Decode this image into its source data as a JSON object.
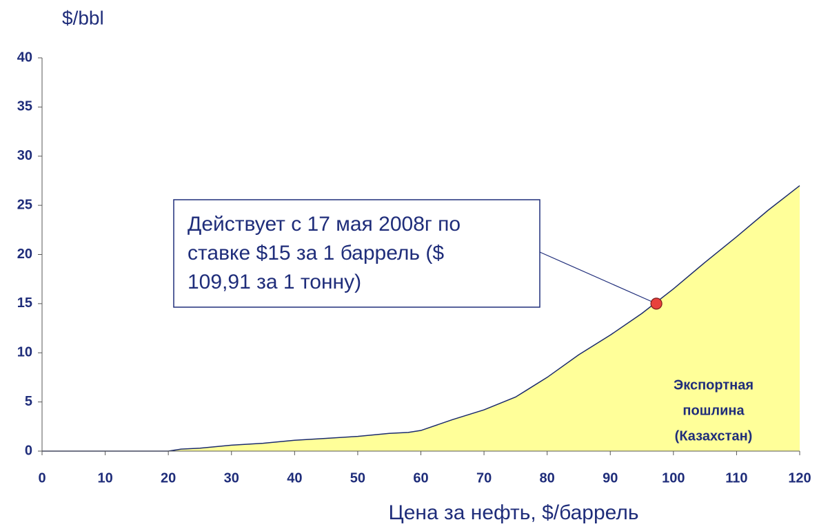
{
  "chart_data": {
    "type": "area",
    "y_label": "$/bbl",
    "x_label": "Цена за нефть, $/баррель",
    "x": [
      0,
      20,
      22,
      25,
      30,
      35,
      40,
      45,
      50,
      55,
      58,
      60,
      65,
      70,
      75,
      80,
      85,
      90,
      95,
      100,
      105,
      110,
      115,
      120
    ],
    "series": [
      {
        "color": "#ffff99",
        "line_color": "#1a2a6c",
        "values": [
          0,
          0,
          0.2,
          0.3,
          0.6,
          0.8,
          1.1,
          1.3,
          1.5,
          1.8,
          1.9,
          2.1,
          3.2,
          4.2,
          5.5,
          7.5,
          9.8,
          11.8,
          14,
          16.5,
          19.2,
          21.8,
          24.5,
          27
        ]
      }
    ],
    "area_label": [
      "Экспортная",
      "пошлина",
      "(Казахстан)"
    ],
    "marker": {
      "x": 97.3,
      "y": 15,
      "color": "#e8413c"
    },
    "callout": [
      "Действует с 17 мая 2008г по",
      "ставке $15 за 1 баррель ($",
      "109,91 за 1 тонну)"
    ],
    "xlim": [
      0,
      120
    ],
    "xticks": [
      0,
      10,
      20,
      30,
      40,
      50,
      60,
      70,
      80,
      90,
      100,
      110,
      120
    ],
    "ylim": [
      0,
      40
    ],
    "yticks": [
      0,
      5,
      10,
      15,
      20,
      25,
      30,
      35,
      40
    ]
  }
}
